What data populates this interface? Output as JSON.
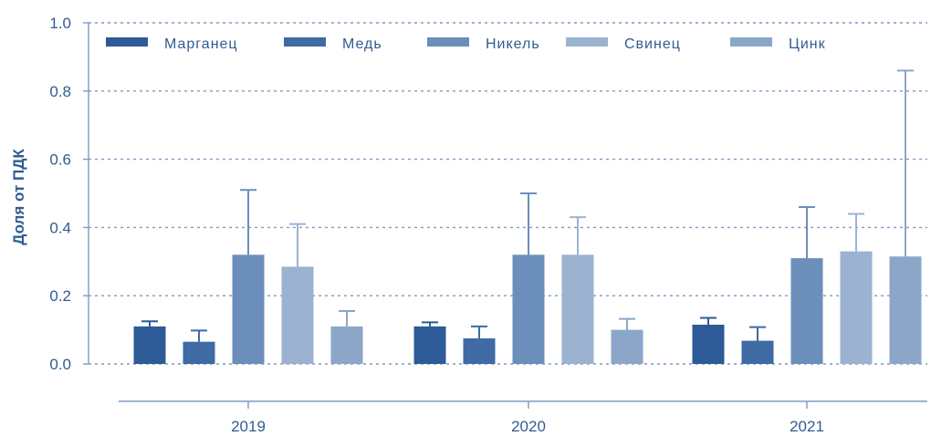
{
  "chart_data": {
    "type": "bar",
    "ylabel": "Доля от ПДК",
    "ylim": [
      0,
      1.0
    ],
    "yticks": [
      "0.0",
      "0.2",
      "0.4",
      "0.6",
      "0.8",
      "1.0"
    ],
    "grid": true,
    "legend_position": "top",
    "categories": [
      "2019",
      "2020",
      "2021"
    ],
    "series": [
      {
        "name": "Марганец",
        "color": "#2d5b97",
        "values": [
          0.11,
          0.11,
          0.115
        ],
        "error_upper": [
          0.125,
          0.122,
          0.135
        ]
      },
      {
        "name": "Медь",
        "color": "#3f6aa3",
        "values": [
          0.065,
          0.075,
          0.068
        ],
        "error_upper": [
          0.098,
          0.11,
          0.108
        ]
      },
      {
        "name": "Никель",
        "color": "#6b8ebb",
        "values": [
          0.32,
          0.32,
          0.31
        ],
        "error_upper": [
          0.51,
          0.5,
          0.46
        ]
      },
      {
        "name": "Свинец",
        "color": "#9cb2d1",
        "values": [
          0.285,
          0.32,
          0.33
        ],
        "error_upper": [
          0.41,
          0.43,
          0.44
        ]
      },
      {
        "name": "Цинк",
        "color": "#8ca6c9",
        "values": [
          0.11,
          0.1,
          0.315
        ],
        "error_upper": [
          0.155,
          0.132,
          0.86
        ]
      }
    ]
  }
}
